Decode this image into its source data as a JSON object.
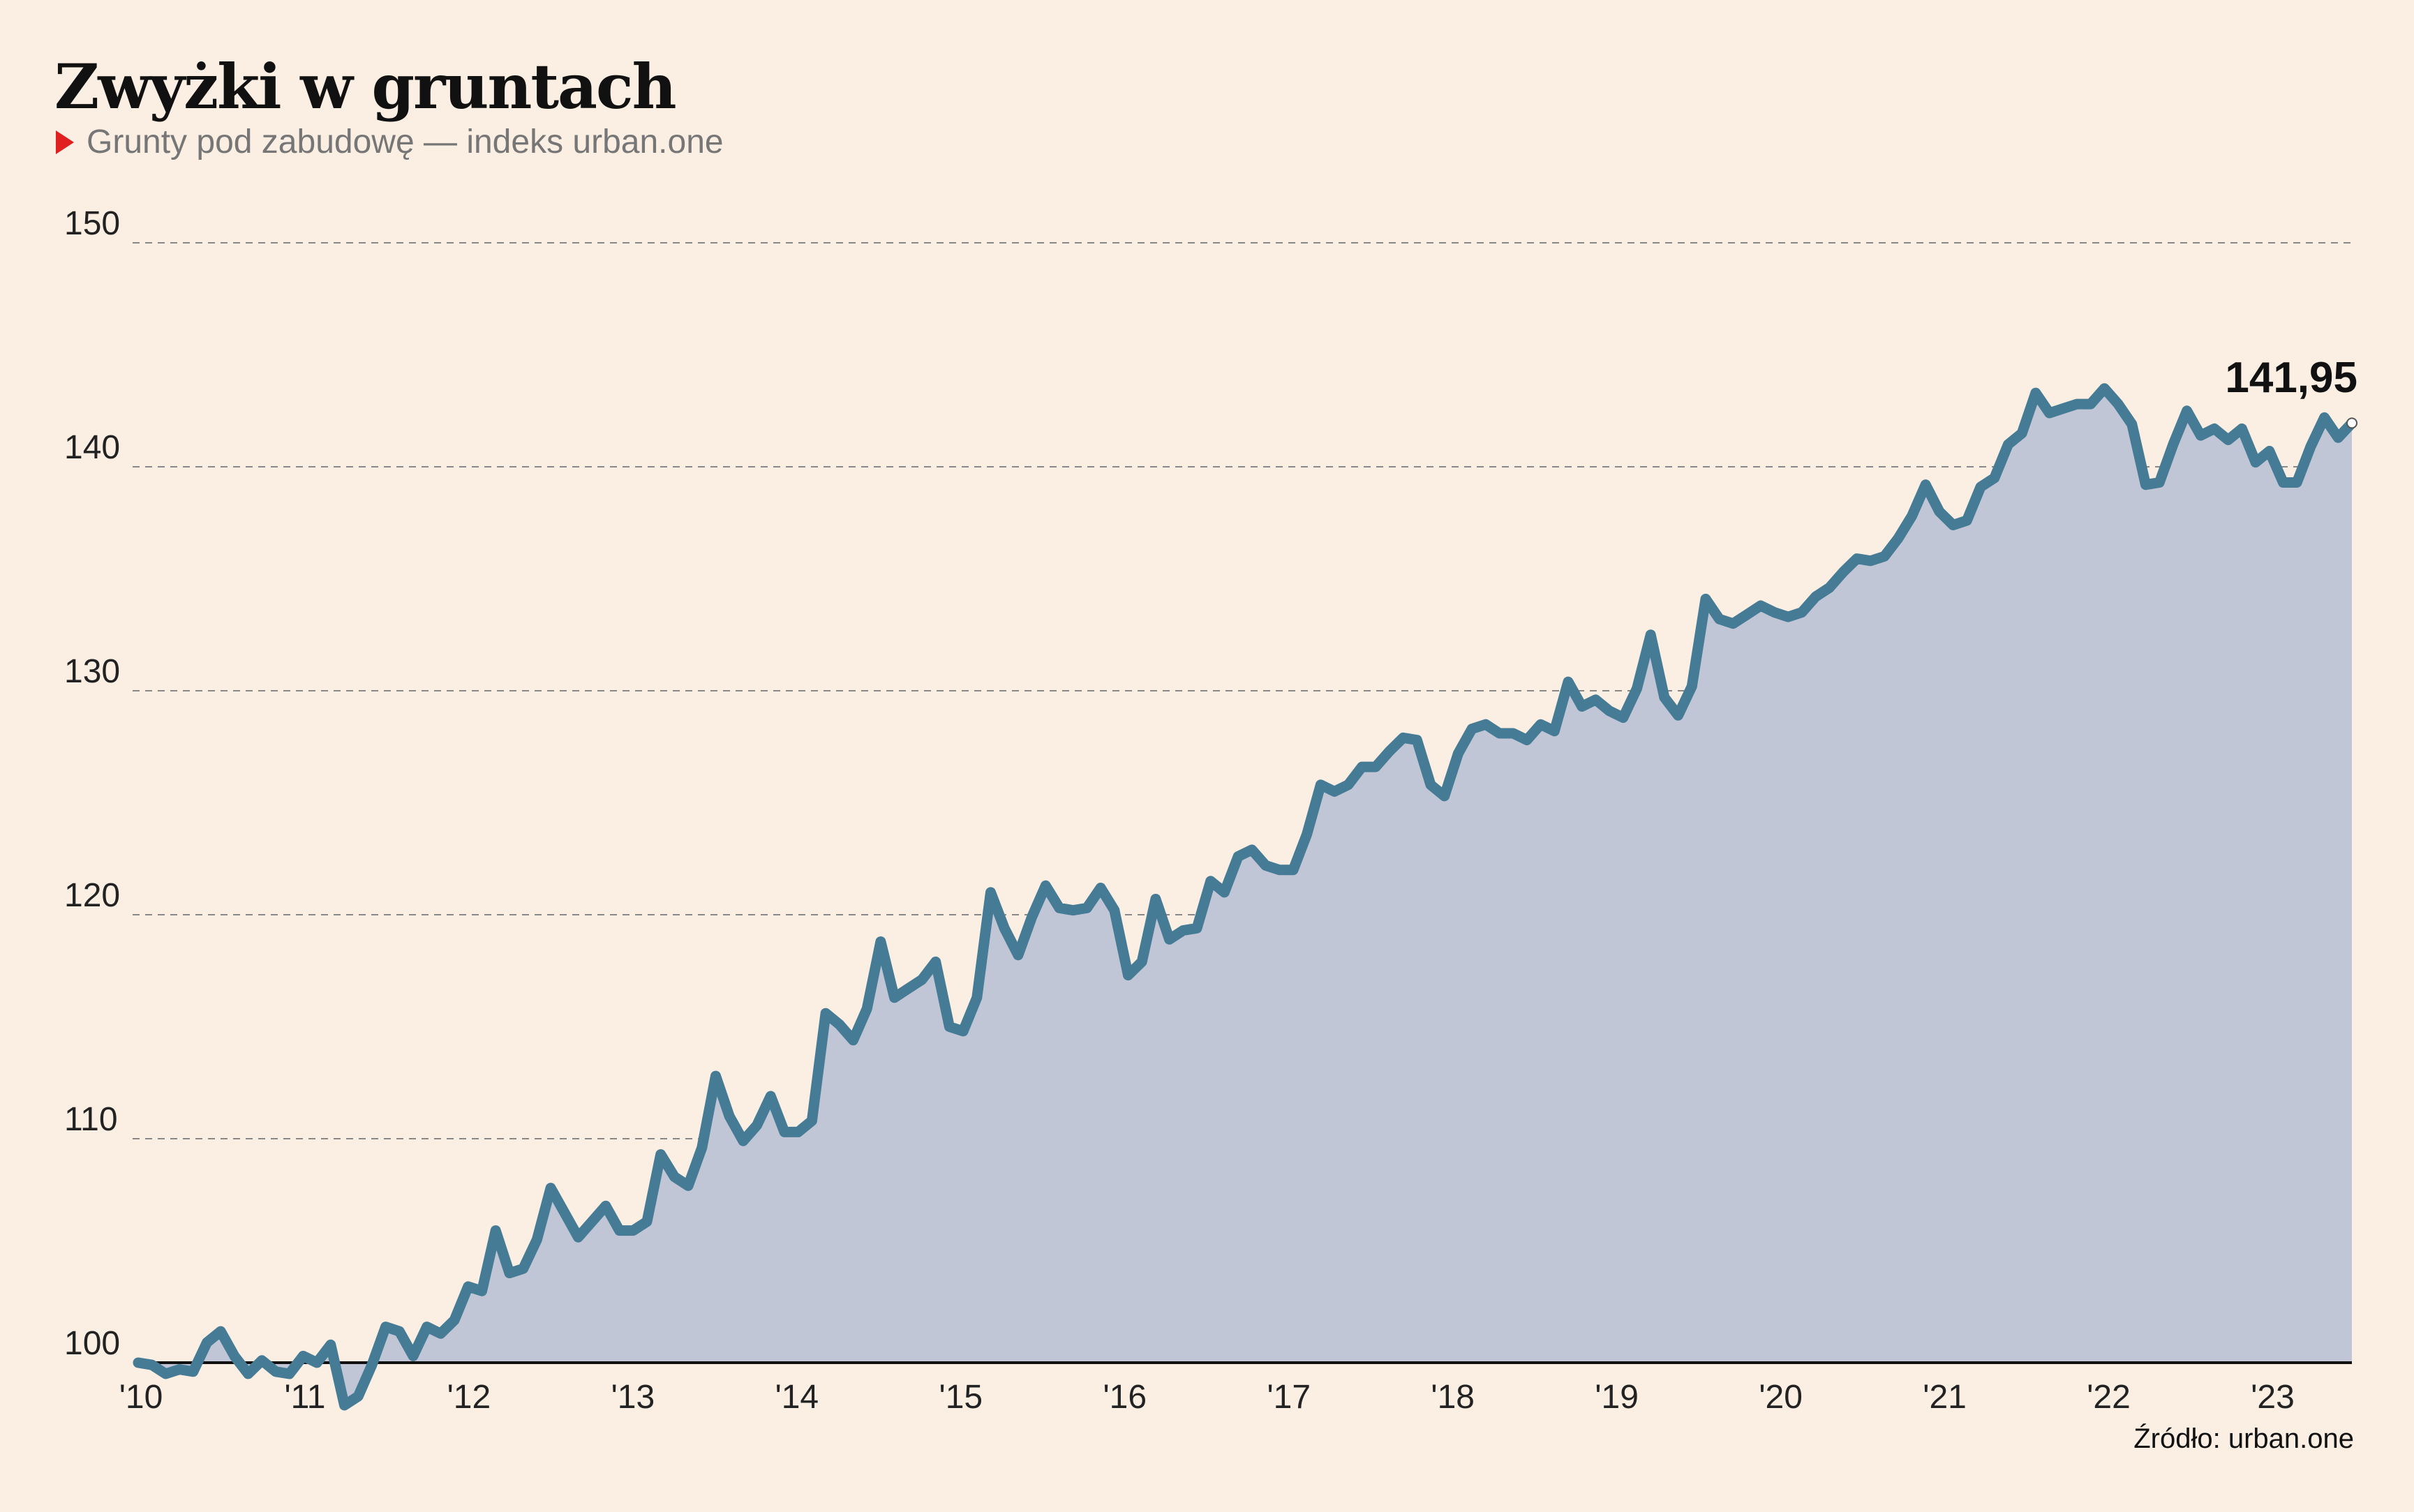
{
  "header": {
    "title": "Zwyżki w gruntach",
    "subtitle": "Grunty pod zabudowę — indeks urban.one"
  },
  "footer": {
    "source": "Źródło: urban.one"
  },
  "colors": {
    "background": "#fbeee2",
    "line": "#457b95",
    "area": "#c1c6d6",
    "marker": "#e02020",
    "grid": "#888888"
  },
  "chart_data": {
    "type": "area",
    "title": "Zwyżki w gruntach",
    "subtitle": "Grunty pod zabudowę — indeks urban.one",
    "xlabel": "",
    "ylabel": "",
    "ylim": [
      100,
      150
    ],
    "xlim": [
      2010.0,
      2023.5
    ],
    "grid": "horizontal dashed",
    "y_ticks": [
      100,
      110,
      120,
      130,
      140,
      150
    ],
    "x_ticks": [
      {
        "value": 2010,
        "label": "'10"
      },
      {
        "value": 2011,
        "label": "'11"
      },
      {
        "value": 2012,
        "label": "'12"
      },
      {
        "value": 2013,
        "label": "'13"
      },
      {
        "value": 2014,
        "label": "'14"
      },
      {
        "value": 2015,
        "label": "'15"
      },
      {
        "value": 2016,
        "label": "'16"
      },
      {
        "value": 2017,
        "label": "'17"
      },
      {
        "value": 2018,
        "label": "'18"
      },
      {
        "value": 2019,
        "label": "'19"
      },
      {
        "value": 2020,
        "label": "'20"
      },
      {
        "value": 2021,
        "label": "'21"
      },
      {
        "value": 2022,
        "label": "'22"
      },
      {
        "value": 2023,
        "label": "'23"
      }
    ],
    "last_value_label": "141,95",
    "x_start": "2010-01",
    "x_end": "2023-06",
    "series": [
      {
        "values": [
          100.0,
          99.9,
          99.5,
          99.7,
          99.6,
          100.9,
          101.4,
          100.3,
          99.5,
          100.1,
          99.6,
          99.5,
          100.3,
          100.0,
          100.8,
          98.1,
          98.5,
          99.9,
          101.6,
          101.4,
          100.3,
          101.6,
          101.3,
          101.9,
          103.4,
          103.2,
          105.9,
          104.0,
          104.2,
          105.5,
          107.8,
          106.7,
          105.6,
          106.3,
          107.0,
          105.9,
          105.9,
          106.3,
          109.3,
          108.3,
          107.9,
          109.6,
          112.8,
          111.0,
          109.9,
          110.6,
          111.9,
          110.3,
          110.3,
          110.8,
          115.6,
          115.1,
          114.4,
          115.8,
          118.8,
          116.3,
          116.7,
          117.1,
          117.9,
          115.0,
          114.8,
          116.3,
          121.0,
          119.4,
          118.2,
          119.9,
          121.3,
          120.3,
          120.2,
          120.3,
          121.2,
          120.2,
          117.3,
          117.9,
          120.7,
          118.9,
          119.3,
          119.4,
          121.5,
          121.0,
          122.6,
          122.9,
          122.2,
          122.0,
          122.0,
          123.6,
          125.8,
          125.5,
          125.8,
          126.6,
          126.6,
          127.3,
          127.9,
          127.8,
          125.8,
          125.3,
          127.2,
          128.3,
          128.5,
          128.1,
          128.1,
          127.8,
          128.5,
          128.2,
          130.4,
          129.3,
          129.6,
          129.1,
          128.8,
          130.1,
          132.5,
          129.7,
          128.9,
          130.2,
          134.1,
          133.2,
          133.0,
          133.4,
          133.8,
          133.5,
          133.3,
          133.5,
          134.2,
          134.6,
          135.3,
          135.9,
          135.8,
          136.0,
          136.8,
          137.8,
          139.2,
          138.0,
          137.4,
          137.6,
          139.1,
          139.5,
          141.0,
          141.5,
          143.3,
          142.4,
          142.6,
          142.8,
          142.8,
          143.5,
          142.8,
          141.9,
          139.2,
          139.3,
          141.0,
          142.5,
          141.4,
          141.7,
          141.2,
          141.7,
          140.2,
          140.7,
          139.3,
          139.3,
          140.9,
          142.2,
          141.3,
          141.95
        ]
      }
    ]
  }
}
